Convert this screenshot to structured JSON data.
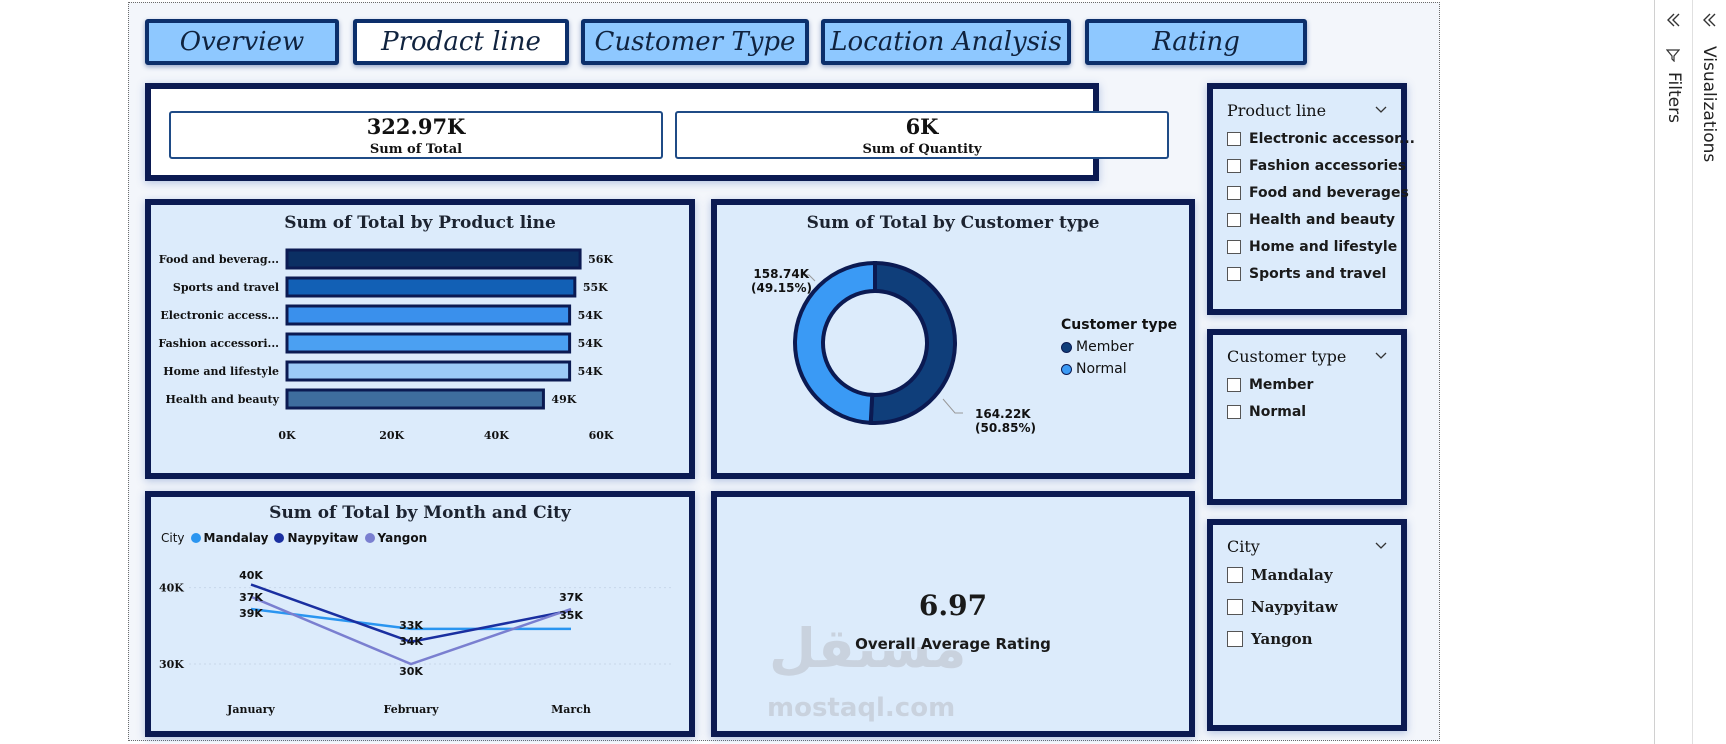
{
  "tabs": [
    {
      "label": "Overview",
      "active": false
    },
    {
      "label": "Prodact line",
      "active": true
    },
    {
      "label": "Customer Type",
      "active": false
    },
    {
      "label": "Location Analysis",
      "active": false
    },
    {
      "label": "Rating",
      "active": false
    }
  ],
  "kpis": {
    "total": {
      "value": "322.97K",
      "label": "Sum of Total"
    },
    "quantity": {
      "value": "6K",
      "label": "Sum of Quantity"
    }
  },
  "bar_chart": {
    "title": "Sum of Total by Product line",
    "ticks": [
      "0K",
      "20K",
      "40K",
      "60K"
    ]
  },
  "donut_chart": {
    "title": "Sum of Total by Customer type",
    "legend_title": "Customer type",
    "normal_label_value": "158.74K",
    "normal_label_pct": "(49.15%)",
    "member_label_value": "164.22K",
    "member_label_pct": "(50.85%)"
  },
  "line_chart": {
    "title": "Sum of Total by Month and City",
    "legend_title": "City",
    "ylabels": [
      "40K",
      "30K"
    ]
  },
  "rating_card": {
    "value": "6.97",
    "label": "Overall Average Rating"
  },
  "slicers": {
    "product_line": {
      "title": "Product line",
      "items": [
        "Electronic accessor...",
        "Fashion accessories",
        "Food and beverages",
        "Health and beauty",
        "Home and lifestyle",
        "Sports and travel"
      ]
    },
    "customer_type": {
      "title": "Customer type",
      "items": [
        "Member",
        "Normal"
      ]
    },
    "city": {
      "title": "City",
      "items": [
        "Mandalay",
        "Naypyitaw",
        "Yangon"
      ]
    }
  },
  "right_pane": {
    "visualizations": "Visualizations",
    "filters": "Filters"
  },
  "watermark": {
    "arabic": "مستقل",
    "latin": "mostaql.com"
  },
  "colors": {
    "panel_border": "#0b1a52",
    "panel_bg": "#dcebfb",
    "tab_bg": "#8ec8ff",
    "member": "#0f3e7a",
    "normal": "#3a9af5"
  },
  "chart_data": [
    {
      "type": "bar",
      "title": "Sum of Total by Product line",
      "orientation": "horizontal",
      "categories": [
        "Food and beverag...",
        "Sports and travel",
        "Electronic access...",
        "Fashion accessori...",
        "Home and lifestyle",
        "Health and beauty"
      ],
      "values": [
        56,
        55,
        54,
        54,
        54,
        49
      ],
      "data_labels": [
        "56K",
        "55K",
        "54K",
        "54K",
        "54K",
        "49K"
      ],
      "colors": [
        "#0b2f63",
        "#1260b5",
        "#3a90ec",
        "#4ba0f2",
        "#9ccaf7",
        "#3e6d9e"
      ],
      "xlim": [
        0,
        60
      ],
      "grid": false
    },
    {
      "type": "pie",
      "title": "Sum of Total by Customer type",
      "donut": true,
      "categories": [
        "Member",
        "Normal"
      ],
      "values": [
        164.22,
        158.74
      ],
      "percent": [
        50.85,
        49.15
      ],
      "colors": [
        "#0f3e7a",
        "#3a9af5"
      ],
      "legend": "right"
    },
    {
      "type": "line",
      "title": "Sum of Total by Month and City",
      "categories": [
        "January",
        "February",
        "March"
      ],
      "series": [
        {
          "name": "Mandalay",
          "values": [
            37.2,
            34.6,
            34.6
          ],
          "color": "#2a95f0"
        },
        {
          "name": "Naypyitaw",
          "values": [
            40.4,
            32.9,
            37.0
          ],
          "color": "#1a2fa0"
        },
        {
          "name": "Yangon",
          "values": [
            38.8,
            30.0,
            37.2
          ],
          "color": "#7a7fd0"
        }
      ],
      "data_labels": [
        {
          "category": "January",
          "labels": [
            "40K",
            "37K",
            "39K"
          ]
        },
        {
          "category": "February",
          "labels": [
            "33K",
            "34K",
            "30K"
          ]
        },
        {
          "category": "March",
          "labels": [
            "37K",
            "35K"
          ]
        }
      ],
      "ylim": [
        27,
        44
      ],
      "legend": "top-left"
    }
  ]
}
